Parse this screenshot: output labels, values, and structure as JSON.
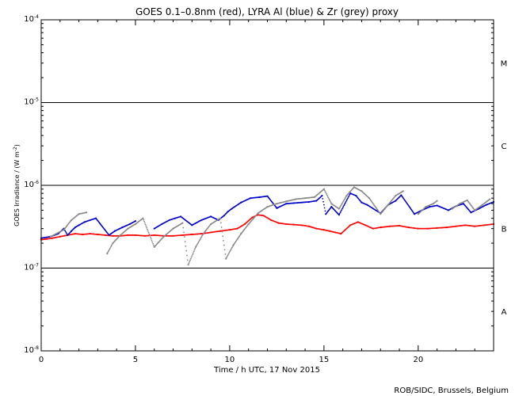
{
  "chart_data": {
    "type": "scatter",
    "title": "GOES 0.1–0.8nm (red), LYRA Al (blue) & Zr (grey) proxy",
    "xlabel": "Time / h UTC, 17 Nov 2015",
    "ylabel": "GOES Irradiance / (W m",
    "ylabel_exp": "-2",
    "ylabel_close": ")",
    "xlim": [
      0,
      24
    ],
    "ylim": [
      1e-08,
      0.0001
    ],
    "yscale": "log",
    "x_ticks": [
      0,
      5,
      10,
      15,
      20
    ],
    "y_ticks": [
      {
        "value": 1e-08,
        "base": "10",
        "exp": "-8"
      },
      {
        "value": 1e-07,
        "base": "10",
        "exp": "-7"
      },
      {
        "value": 1e-06,
        "base": "10",
        "exp": "-6"
      },
      {
        "value": 1e-05,
        "base": "10",
        "exp": "-5"
      },
      {
        "value": 0.0001,
        "base": "10",
        "exp": "-4"
      }
    ],
    "class_lines": [
      1e-07,
      1e-06,
      1e-05
    ],
    "class_labels": [
      {
        "label": "A",
        "value": 3e-08
      },
      {
        "label": "B",
        "value": 3e-07
      },
      {
        "label": "C",
        "value": 3e-06
      },
      {
        "label": "M",
        "value": 3e-05
      }
    ],
    "series": [
      {
        "color": "#ff0000",
        "x": [
          0.0,
          0.3,
          0.6,
          1.0,
          1.4,
          1.8,
          2.2,
          2.6,
          3.0,
          3.4,
          3.8,
          4.2,
          4.6,
          5.0,
          5.5,
          6.0,
          6.5,
          7.0,
          7.5,
          8.0,
          8.5,
          9.0,
          9.5,
          10.0,
          10.4,
          10.8,
          11.2,
          11.5,
          11.8,
          12.2,
          12.6,
          13.0,
          13.4,
          13.8,
          14.2,
          14.6,
          15.0,
          15.3,
          15.6,
          15.9,
          16.4,
          16.8,
          17.2,
          17.6,
          18.0,
          18.5,
          19.0,
          19.5,
          20.0,
          20.5,
          21.0,
          21.5,
          22.0,
          22.5,
          23.0,
          23.5,
          24.0
        ],
        "y": [
          2.2e-07,
          2.25e-07,
          2.3e-07,
          2.4e-07,
          2.5e-07,
          2.6e-07,
          2.55e-07,
          2.6e-07,
          2.55e-07,
          2.5e-07,
          2.45e-07,
          2.45e-07,
          2.5e-07,
          2.5e-07,
          2.45e-07,
          2.5e-07,
          2.45e-07,
          2.45e-07,
          2.5e-07,
          2.55e-07,
          2.6e-07,
          2.7e-07,
          2.8e-07,
          2.9e-07,
          3e-07,
          3.4e-07,
          4.1e-07,
          4.4e-07,
          4.3e-07,
          3.8e-07,
          3.5e-07,
          3.4e-07,
          3.35e-07,
          3.3e-07,
          3.2e-07,
          3e-07,
          2.9e-07,
          2.8e-07,
          2.7e-07,
          2.6e-07,
          3.3e-07,
          3.6e-07,
          3.3e-07,
          3e-07,
          3.1e-07,
          3.2e-07,
          3.25e-07,
          3.1e-07,
          3e-07,
          3e-07,
          3.05e-07,
          3.1e-07,
          3.2e-07,
          3.3e-07,
          3.2e-07,
          3.3e-07,
          3.4e-07
        ]
      },
      {
        "color": "#0000cc",
        "x": [
          0.0,
          0.5,
          0.9,
          1.2,
          1.4,
          1.6,
          1.8,
          2.0,
          2.3,
          2.6,
          2.9,
          3.6,
          3.9,
          4.3,
          4.7,
          5.0,
          6.0,
          6.4,
          6.8,
          7.1,
          7.4,
          8.0,
          8.5,
          9.0,
          9.4,
          9.7,
          9.9,
          10.1,
          10.6,
          11.1,
          11.6,
          12.0,
          12.5,
          13.0,
          13.4,
          13.8,
          14.2,
          14.6,
          14.9,
          15.1,
          15.4,
          15.8,
          16.4,
          16.7,
          17.0,
          17.3,
          18.0,
          18.4,
          18.8,
          19.1,
          19.8,
          20.2,
          20.6,
          21.0,
          21.6,
          22.0,
          22.4,
          22.8,
          23.2,
          23.6,
          24.0
        ],
        "y": [
          2.3e-07,
          2.4e-07,
          2.6e-07,
          3e-07,
          2.5e-07,
          2.8e-07,
          3.1e-07,
          3.3e-07,
          3.6e-07,
          3.8e-07,
          4e-07,
          2.5e-07,
          2.8e-07,
          3.1e-07,
          3.4e-07,
          3.7e-07,
          3e-07,
          3.4e-07,
          3.8e-07,
          4e-07,
          4.2e-07,
          3.3e-07,
          3.8e-07,
          4.2e-07,
          3.8e-07,
          4.3e-07,
          4.8e-07,
          5.2e-07,
          6.2e-07,
          7e-07,
          7.2e-07,
          7.4e-07,
          5.3e-07,
          6e-07,
          6.1e-07,
          6.2e-07,
          6.3e-07,
          6.5e-07,
          7.5e-07,
          4.5e-07,
          5.5e-07,
          4.4e-07,
          8e-07,
          7.5e-07,
          6.2e-07,
          5.8e-07,
          4.6e-07,
          5.8e-07,
          6.5e-07,
          7.6e-07,
          4.5e-07,
          5e-07,
          5.5e-07,
          5.7e-07,
          5e-07,
          5.6e-07,
          6e-07,
          4.7e-07,
          5.2e-07,
          5.8e-07,
          6.3e-07
        ]
      },
      {
        "color": "#888888",
        "x": [
          0.5,
          1.2,
          1.6,
          2.0,
          2.4,
          3.5,
          3.8,
          4.2,
          4.6,
          5.0,
          5.4,
          6.0,
          6.5,
          7.0,
          7.5,
          7.8,
          8.2,
          8.6,
          9.0,
          9.5,
          9.8,
          10.2,
          10.6,
          11.0,
          11.5,
          12.0,
          12.5,
          13.0,
          13.5,
          14.0,
          14.5,
          15.0,
          15.4,
          15.8,
          16.2,
          16.6,
          17.0,
          17.4,
          18.0,
          18.4,
          18.8,
          19.2,
          20.0,
          20.4,
          20.8,
          21.0,
          21.8,
          22.2,
          22.6,
          23.0,
          23.4,
          23.8
        ],
        "y": [
          2.4e-07,
          2.9e-07,
          3.8e-07,
          4.5e-07,
          4.7e-07,
          1.5e-07,
          2e-07,
          2.5e-07,
          3e-07,
          3.4e-07,
          4e-07,
          1.8e-07,
          2.4e-07,
          3e-07,
          3.5e-07,
          1.1e-07,
          1.8e-07,
          2.6e-07,
          3.4e-07,
          4e-07,
          1.3e-07,
          1.9e-07,
          2.6e-07,
          3.4e-07,
          4.6e-07,
          5.5e-07,
          6e-07,
          6.4e-07,
          6.8e-07,
          7e-07,
          7.2e-07,
          9e-07,
          6e-07,
          5.2e-07,
          7.5e-07,
          9.5e-07,
          8.5e-07,
          7e-07,
          4.5e-07,
          5.8e-07,
          7.5e-07,
          8.5e-07,
          4.5e-07,
          5.5e-07,
          6e-07,
          6.5e-07,
          5.2e-07,
          6e-07,
          6.6e-07,
          5e-07,
          5.8e-07,
          6.8e-07
        ]
      }
    ],
    "annotations": [
      "ROB/SIDC, Brussels, Belgium"
    ]
  }
}
